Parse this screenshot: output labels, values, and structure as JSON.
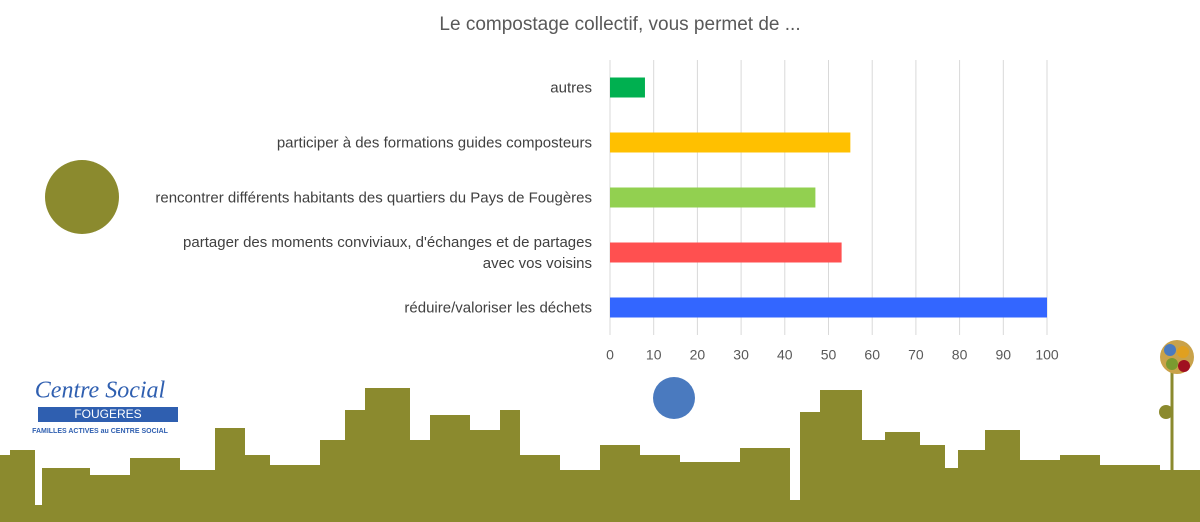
{
  "chart_data": {
    "type": "barh",
    "title": "Le compostage collectif, vous permet de ...",
    "categories": [
      "autres",
      "participer à des formations guides composteurs",
      "rencontrer différents habitants des quartiers du Pays de Fougères",
      "partager des moments conviviaux, d'échanges et de partages avec vos voisins",
      "réduire/valoriser les déchets"
    ],
    "values": [
      8,
      55,
      47,
      53,
      100
    ],
    "colors": [
      "#00b050",
      "#ffc000",
      "#92d050",
      "#ff5050",
      "#3366ff"
    ],
    "xlim": [
      0,
      100
    ],
    "xticks": [
      0,
      10,
      20,
      30,
      40,
      50,
      60,
      70,
      80,
      90,
      100
    ],
    "grid": true
  },
  "logo": {
    "name": "Centre Social",
    "city": "FOUGERES",
    "tagline": "FAMILLES ACTIVES au CENTRE SOCIAL"
  }
}
